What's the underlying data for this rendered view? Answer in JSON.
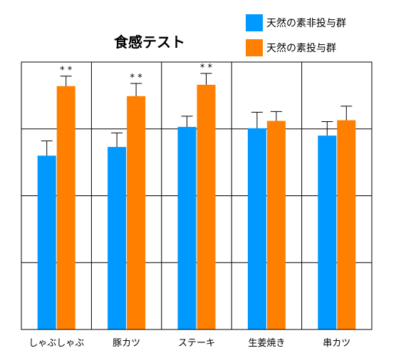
{
  "chart_data": {
    "type": "bar",
    "title": "食感テスト",
    "categories": [
      "しゃぶしゃぶ",
      "豚カツ",
      "ステーキ",
      "生姜焼き",
      "串カツ"
    ],
    "series": [
      {
        "name": "天然の素非投与群",
        "color": "#0099ff",
        "values": [
          2.6,
          2.73,
          3.03,
          3.01,
          2.9
        ],
        "errors": [
          0.22,
          0.21,
          0.16,
          0.24,
          0.21
        ]
      },
      {
        "name": "天然の素投与群",
        "color": "#ff8000",
        "values": [
          3.64,
          3.49,
          3.66,
          3.12,
          3.13
        ],
        "errors": [
          0.15,
          0.19,
          0.17,
          0.14,
          0.21
        ]
      }
    ],
    "significance": [
      "* *",
      "* *",
      "* *",
      "",
      ""
    ],
    "ylim": [
      0,
      4
    ],
    "xlabel": "",
    "ylabel": "",
    "grid": true,
    "legend_position": "top-right"
  }
}
